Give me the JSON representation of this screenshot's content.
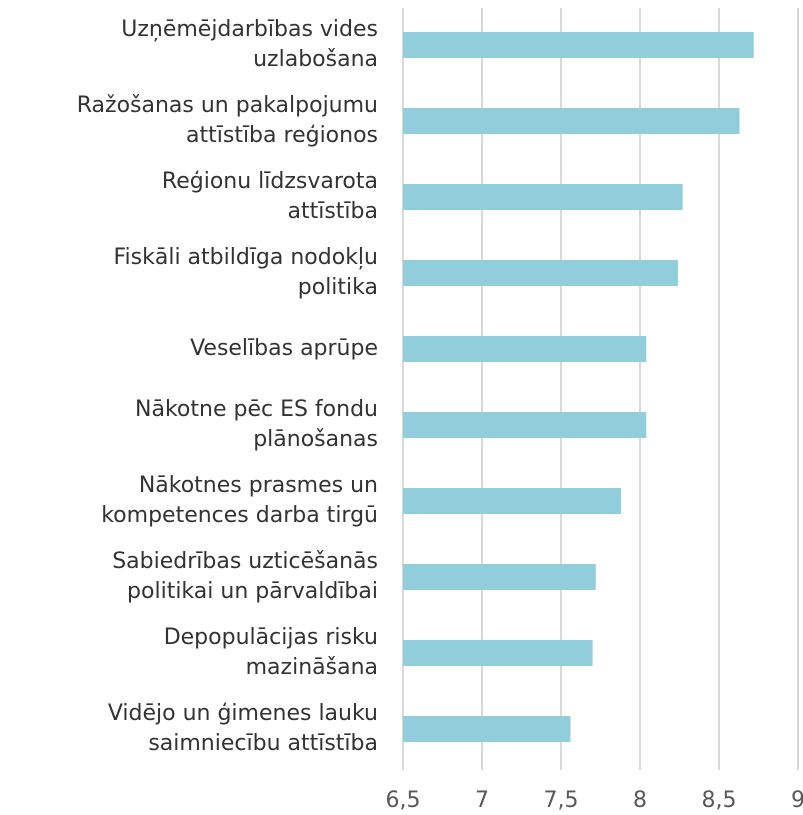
{
  "chart_data": {
    "type": "bar",
    "orientation": "horizontal",
    "categories": [
      "Uzņēmējdarbības vides\nuzlabošana",
      "Ražošanas un pakalpojumu\nattīstība reģionos",
      "Reģionu līdzsvarota\nattīstība",
      "Fiskāli atbildīga nodokļu\npolitika",
      "Veselības aprūpe",
      "Nākotne pēc ES fondu\nplānošanas",
      "Nākotnes prasmes un\nkompetences darba tirgū",
      "Sabiedrības uzticēšanās\npolitikai un pārvaldībai",
      "Depopulācijas risku\nmazināšana",
      "Vidējo un ģimenes lauku\nsaimniecību attīstība"
    ],
    "values": [
      8.72,
      8.63,
      8.27,
      8.24,
      8.04,
      8.04,
      7.88,
      7.72,
      7.7,
      7.56
    ],
    "color": "#92cddc",
    "xlim": [
      6.5,
      9
    ],
    "xticks": [
      {
        "value": 6.5,
        "label": "6,5"
      },
      7,
      {
        "value": 7.5,
        "label": "7,5"
      },
      8,
      {
        "value": 8.5,
        "label": "8,5"
      },
      9
    ],
    "grid": true
  }
}
